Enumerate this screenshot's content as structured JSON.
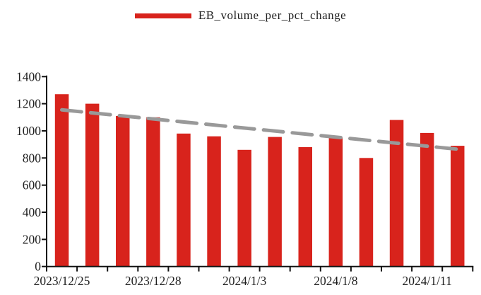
{
  "legend": {
    "label": "EB_volume_per_pct_change",
    "swatch_color": "#d8231c"
  },
  "chart_data": {
    "type": "bar",
    "title": "",
    "n_categories": 14,
    "series": [
      {
        "name": "EB_volume_per_pct_change",
        "color": "#d8231c",
        "values": [
          1270,
          1200,
          1110,
          1100,
          980,
          960,
          860,
          955,
          880,
          950,
          800,
          1080,
          985,
          890
        ]
      }
    ],
    "x_tick_labels": [
      {
        "bar_index": 0,
        "text": "2023/12/25"
      },
      {
        "bar_index": 3,
        "text": "2023/12/28"
      },
      {
        "bar_index": 6,
        "text": "2024/1/3"
      },
      {
        "bar_index": 9,
        "text": "2024/1/8"
      },
      {
        "bar_index": 12,
        "text": "2024/1/11"
      }
    ],
    "y_ticks": [
      0,
      200,
      400,
      600,
      800,
      1000,
      1200,
      1400
    ],
    "ylim": [
      0,
      1400
    ],
    "grid": false,
    "legend_position": "top-center",
    "trendline": {
      "type": "linear-dashed",
      "start_value": 1155,
      "end_value": 865,
      "color": "#999999"
    },
    "axis_color": "#111111",
    "text_color": "#1f1f1f"
  }
}
